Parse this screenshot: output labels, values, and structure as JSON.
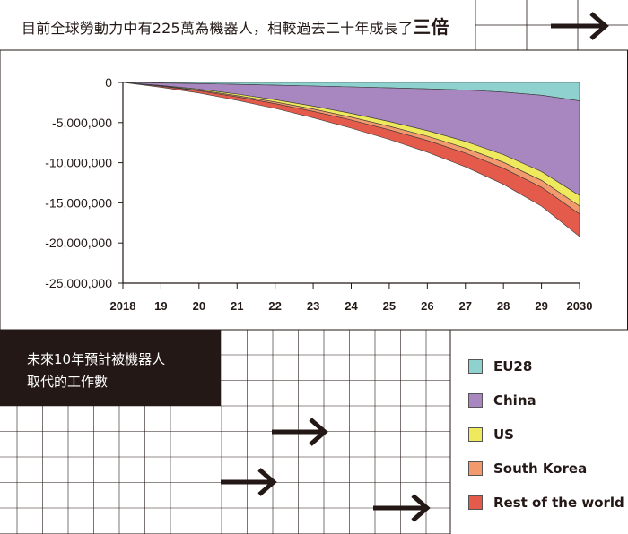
{
  "headline": {
    "prefix": "目前全球勞動力中有225萬為機器人，相較過去二十年成長了",
    "emphasis": "三倍"
  },
  "subtitle": {
    "line1": "未來10年預計被機器人",
    "line2": "取代的工作數"
  },
  "colors": {
    "EU28": "#8fd1cf",
    "China": "#a887c0",
    "US": "#eee95d",
    "South Korea": "#f29a6e",
    "Rest of the world": "#e55b4b",
    "ink": "#231815"
  },
  "chart_data": {
    "type": "area",
    "stacked": true,
    "direction": "down",
    "x": [
      2018,
      2019,
      2020,
      2021,
      2022,
      2023,
      2024,
      2025,
      2026,
      2027,
      2028,
      2029,
      2030
    ],
    "x_tick_labels": [
      "2018",
      "19",
      "20",
      "21",
      "22",
      "23",
      "24",
      "25",
      "26",
      "27",
      "28",
      "29",
      "2030"
    ],
    "y_tick_labels": [
      "0",
      "-5,000,000",
      "-10,000,000",
      "-15,000,000",
      "-20,000,000",
      "-25,000,000"
    ],
    "y_ticks": [
      0,
      -5000000,
      -10000000,
      -15000000,
      -20000000,
      -25000000
    ],
    "ylim": [
      -25000000,
      0
    ],
    "xlim": [
      2018,
      2030
    ],
    "grid": false,
    "legend_position": "bottom-right",
    "series": [
      {
        "name": "EU28",
        "values": [
          0,
          -80000,
          -150000,
          -250000,
          -350000,
          -450000,
          -560000,
          -680000,
          -800000,
          -950000,
          -1200000,
          -1600000,
          -2300000
        ]
      },
      {
        "name": "China",
        "values": [
          0,
          -300000,
          -700000,
          -1200000,
          -1800000,
          -2500000,
          -3300000,
          -4200000,
          -5200000,
          -6400000,
          -7800000,
          -9500000,
          -11800000
        ]
      },
      {
        "name": "US",
        "values": [
          0,
          -60000,
          -120000,
          -200000,
          -280000,
          -370000,
          -470000,
          -580000,
          -700000,
          -830000,
          -950000,
          -1100000,
          -1300000
        ]
      },
      {
        "name": "South Korea",
        "values": [
          0,
          -40000,
          -90000,
          -150000,
          -210000,
          -280000,
          -360000,
          -440000,
          -530000,
          -630000,
          -740000,
          -860000,
          -1000000
        ]
      },
      {
        "name": "Rest of the world",
        "values": [
          0,
          -120000,
          -260000,
          -420000,
          -600000,
          -800000,
          -1000000,
          -1200000,
          -1450000,
          -1700000,
          -2000000,
          -2350000,
          -2800000
        ]
      }
    ]
  }
}
